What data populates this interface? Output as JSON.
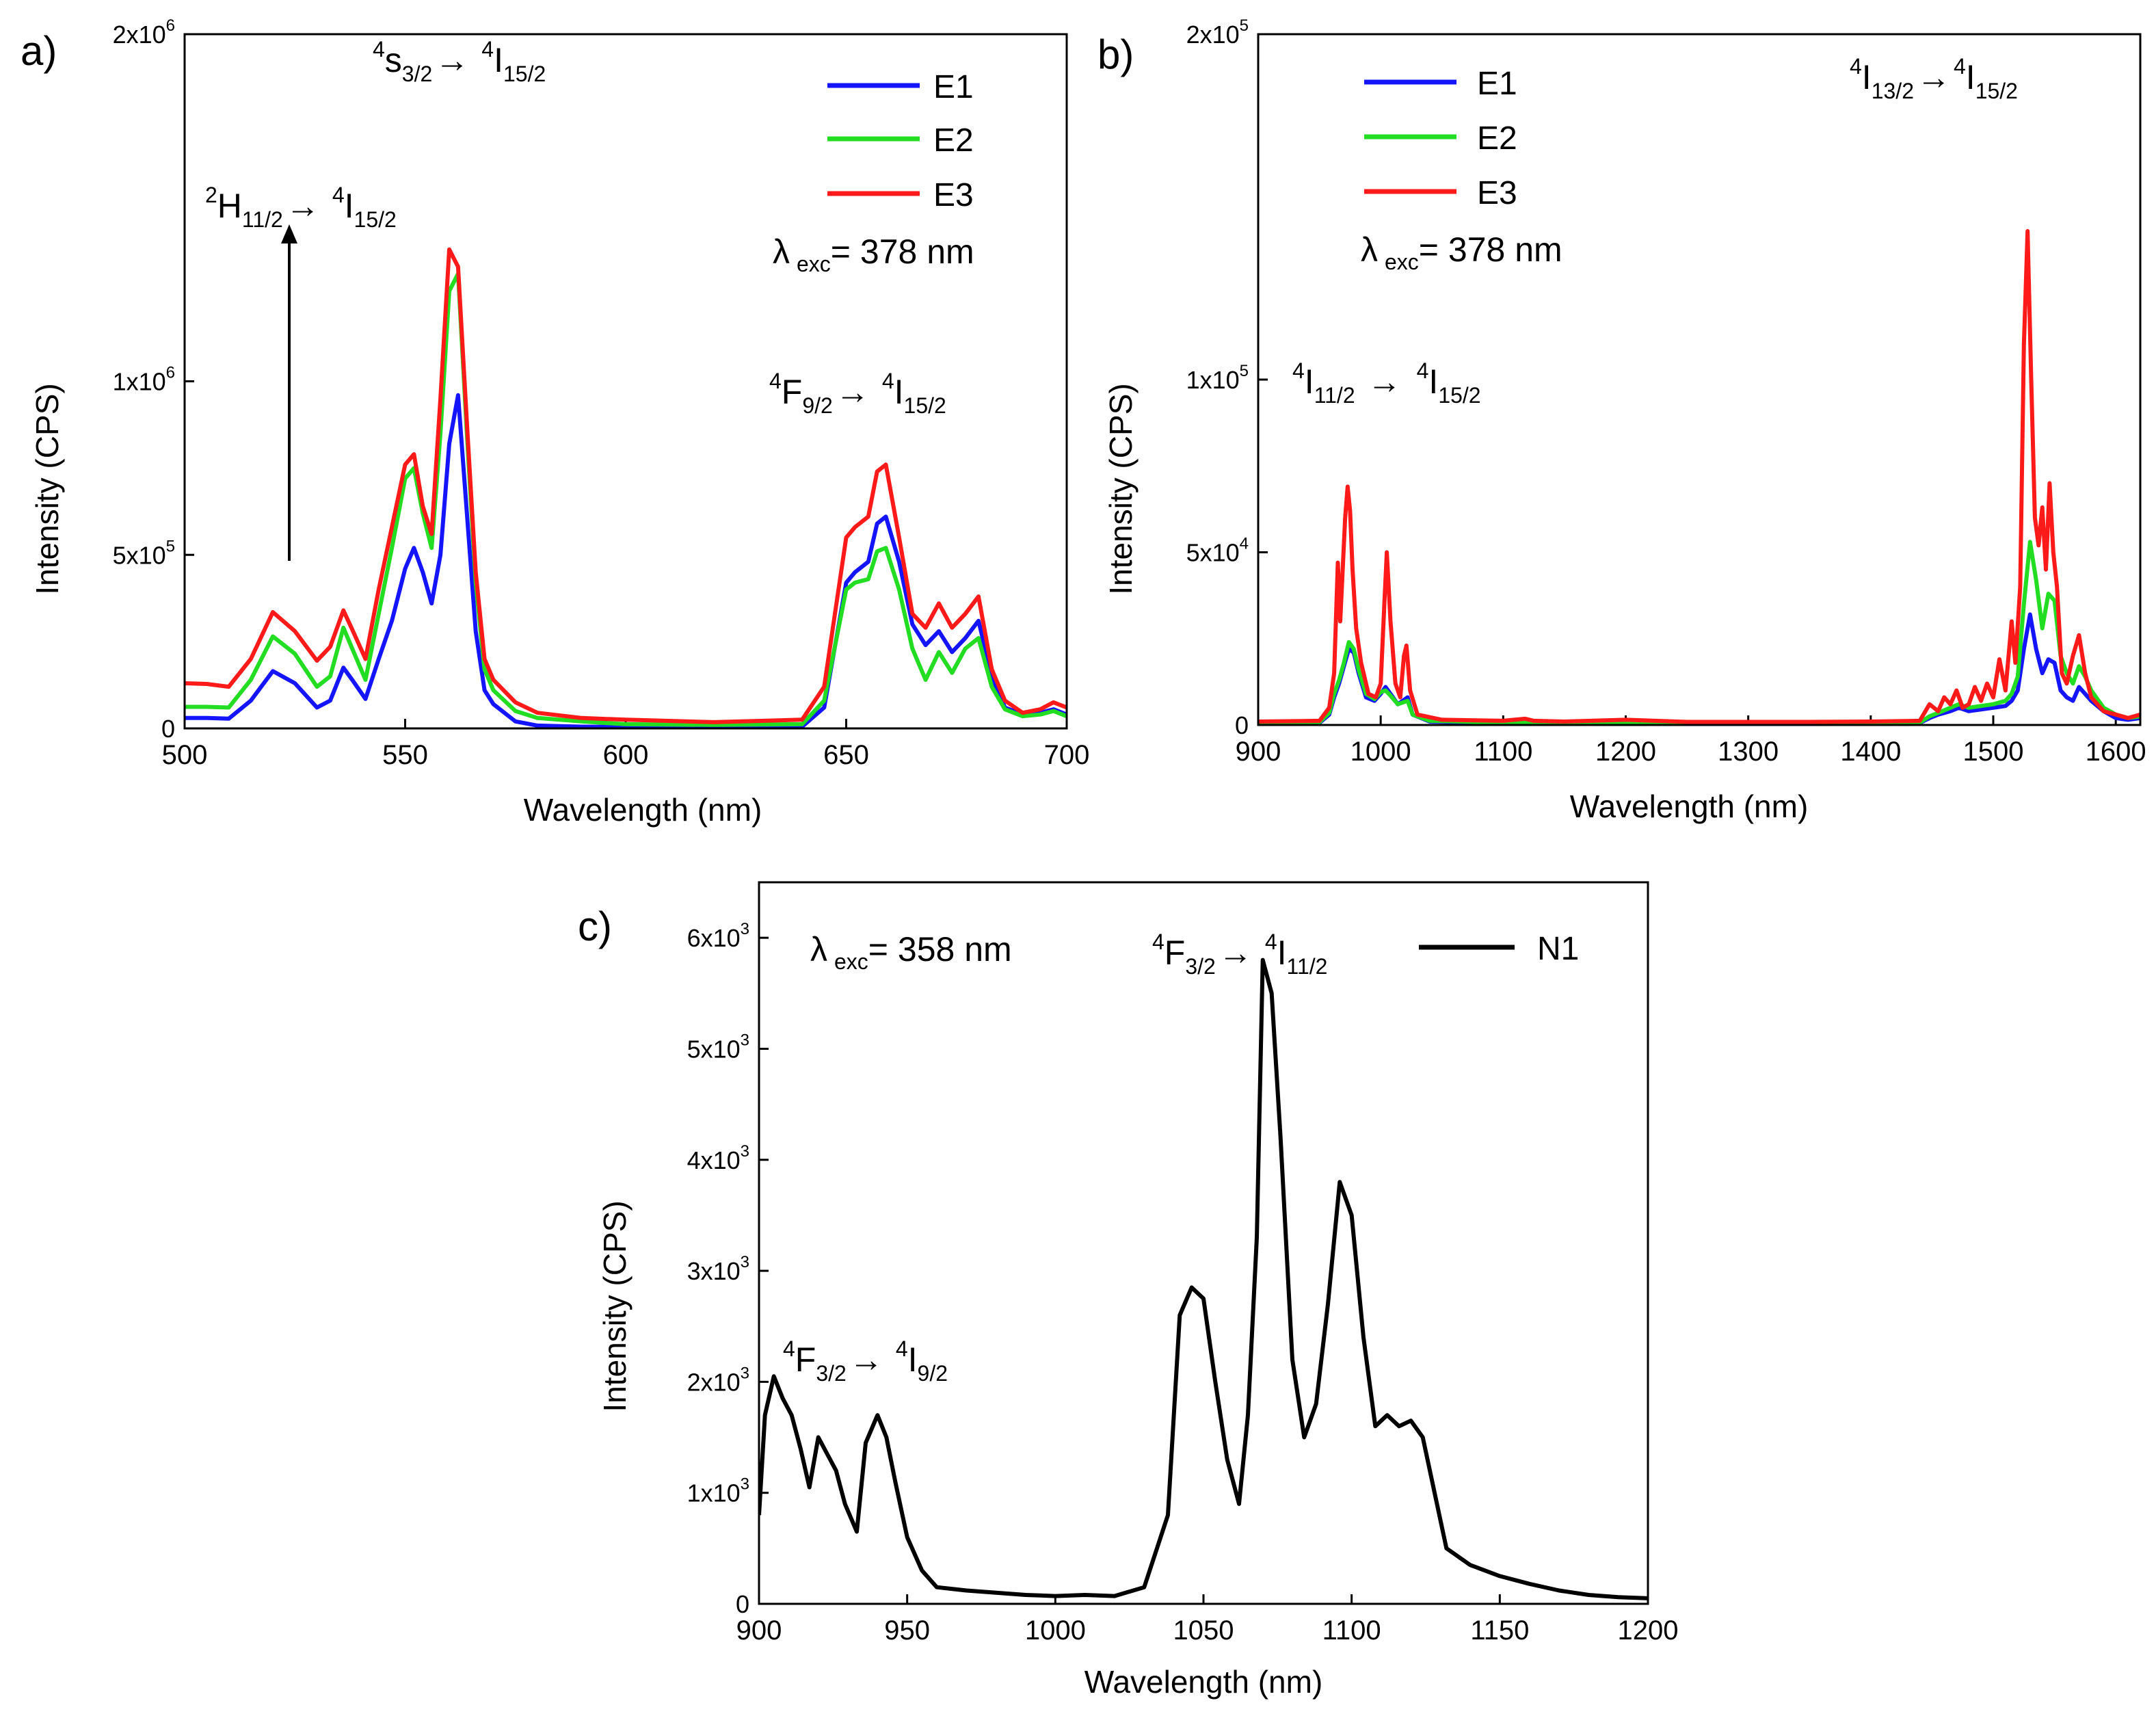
{
  "colors": {
    "E1": "#1414ff",
    "E2": "#22dd22",
    "E3": "#ff1a1a",
    "N1": "#000000"
  },
  "chart_data": [
    {
      "id": "a",
      "type": "line",
      "panel_label": "a)",
      "xlabel": "Wavelength (nm)",
      "ylabel": "Intensity (CPS)",
      "xlim": [
        500,
        700
      ],
      "ylim": [
        0,
        2000000
      ],
      "x_ticks": [
        500,
        550,
        600,
        650,
        700
      ],
      "x_tick_labels": [
        "500",
        "550",
        "600",
        "650",
        "700"
      ],
      "y_ticks": [
        0,
        500000,
        1000000,
        2000000
      ],
      "y_tick_labels": [
        {
          "base": "0",
          "exp": ""
        },
        {
          "base": "5x10",
          "exp": "5"
        },
        {
          "base": "1x10",
          "exp": "6"
        },
        {
          "base": "2x10",
          "exp": "6"
        }
      ],
      "legend": {
        "position": "top-right",
        "entries": [
          "E1",
          "E2",
          "E3"
        ]
      },
      "excitation": {
        "prefix": "λ",
        "sub": "exc",
        "text": "= 378 nm"
      },
      "annotations": [
        {
          "sup1": "2",
          "main1": "H",
          "sub1": "11/2",
          "arrow": "→",
          "sup2": "4",
          "main2": "I",
          "sub2": "15/2"
        },
        {
          "sup1": "4",
          "main1": "s",
          "sub1": "3/2",
          "arrow": "→",
          "sup2": "4",
          "main2": "I",
          "sub2": "15/2"
        },
        {
          "sup1": "4",
          "main1": "F",
          "sub1": "9/2",
          "arrow": "→",
          "sup2": "4",
          "main2": "I",
          "sub2": "15/2"
        }
      ],
      "series": [
        {
          "name": "E1",
          "x": [
            500,
            505,
            510,
            515,
            520,
            525,
            530,
            533,
            536,
            538,
            541,
            544,
            547,
            550,
            552,
            554,
            556,
            558,
            560,
            562,
            564,
            566,
            568,
            570,
            575,
            580,
            590,
            600,
            620,
            640,
            645,
            650,
            652,
            655,
            657,
            659,
            662,
            665,
            668,
            671,
            674,
            677,
            680,
            683,
            686,
            690,
            694,
            697,
            700
          ],
          "y": [
            30000,
            30000,
            28000,
            80000,
            165000,
            130000,
            60000,
            80000,
            175000,
            140000,
            85000,
            200000,
            310000,
            460000,
            520000,
            450000,
            360000,
            500000,
            820000,
            960000,
            620000,
            280000,
            110000,
            70000,
            20000,
            8000,
            5000,
            4000,
            4000,
            5000,
            60000,
            420000,
            450000,
            480000,
            590000,
            610000,
            480000,
            300000,
            240000,
            280000,
            220000,
            260000,
            310000,
            150000,
            60000,
            40000,
            45000,
            55000,
            40000
          ]
        },
        {
          "name": "E2",
          "x": [
            500,
            505,
            510,
            515,
            520,
            525,
            530,
            533,
            536,
            538,
            541,
            544,
            547,
            550,
            552,
            554,
            556,
            558,
            560,
            562,
            564,
            566,
            568,
            570,
            575,
            580,
            590,
            600,
            620,
            640,
            645,
            650,
            652,
            655,
            657,
            659,
            662,
            665,
            668,
            671,
            674,
            677,
            680,
            683,
            686,
            690,
            694,
            697,
            700
          ],
          "y": [
            62000,
            62000,
            60000,
            140000,
            265000,
            215000,
            120000,
            150000,
            290000,
            230000,
            140000,
            330000,
            520000,
            720000,
            750000,
            620000,
            520000,
            850000,
            1260000,
            1310000,
            850000,
            420000,
            170000,
            110000,
            50000,
            30000,
            20000,
            12000,
            10000,
            12000,
            80000,
            400000,
            420000,
            430000,
            510000,
            520000,
            400000,
            230000,
            140000,
            220000,
            160000,
            230000,
            260000,
            120000,
            55000,
            35000,
            40000,
            50000,
            35000
          ]
        },
        {
          "name": "E3",
          "x": [
            500,
            505,
            510,
            515,
            520,
            525,
            530,
            533,
            536,
            538,
            541,
            544,
            547,
            550,
            552,
            554,
            556,
            558,
            560,
            562,
            564,
            566,
            568,
            570,
            575,
            580,
            590,
            600,
            620,
            640,
            645,
            650,
            652,
            655,
            657,
            659,
            662,
            665,
            668,
            671,
            674,
            677,
            680,
            683,
            686,
            690,
            694,
            697,
            700
          ],
          "y": [
            130000,
            128000,
            120000,
            200000,
            335000,
            280000,
            195000,
            235000,
            340000,
            285000,
            200000,
            400000,
            580000,
            760000,
            790000,
            640000,
            560000,
            950000,
            1380000,
            1330000,
            880000,
            450000,
            200000,
            140000,
            75000,
            45000,
            30000,
            25000,
            18000,
            25000,
            120000,
            550000,
            580000,
            610000,
            740000,
            760000,
            550000,
            330000,
            290000,
            360000,
            290000,
            330000,
            380000,
            170000,
            80000,
            45000,
            55000,
            75000,
            60000
          ]
        }
      ]
    },
    {
      "id": "b",
      "type": "line",
      "panel_label": "b)",
      "xlabel": "Wavelength (nm)",
      "ylabel": "Intensity (CPS)",
      "xlim": [
        900,
        1620
      ],
      "ylim": [
        0,
        200000
      ],
      "x_ticks": [
        900,
        1000,
        1100,
        1200,
        1300,
        1400,
        1500,
        1600
      ],
      "x_tick_labels": [
        "900",
        "1000",
        "1100",
        "1200",
        "1300",
        "1400",
        "1500",
        "1600"
      ],
      "y_ticks": [
        0,
        50000,
        100000,
        200000
      ],
      "y_tick_labels": [
        {
          "base": "0",
          "exp": ""
        },
        {
          "base": "5x10",
          "exp": "4"
        },
        {
          "base": "1x10",
          "exp": "5"
        },
        {
          "base": "2x10",
          "exp": "5"
        }
      ],
      "legend": {
        "position": "top-left",
        "entries": [
          "E1",
          "E2",
          "E3"
        ]
      },
      "excitation": {
        "prefix": "λ",
        "sub": "exc",
        "text": "= 378 nm"
      },
      "annotations": [
        {
          "sup1": "4",
          "main1": "I",
          "sub1": "11/2",
          "arrow": "→",
          "sup2": "4",
          "main2": "I",
          "sub2": "15/2"
        },
        {
          "sup1": "4",
          "main1": "I",
          "sub1": "13/2",
          "arrow": "→",
          "sup2": "4",
          "main2": "I",
          "sub2": "15/2"
        }
      ],
      "series": [
        {
          "name": "E1",
          "x": [
            900,
            950,
            958,
            962,
            966,
            970,
            974,
            978,
            982,
            988,
            995,
            1000,
            1004,
            1008,
            1014,
            1018,
            1022,
            1026,
            1040,
            1100,
            1200,
            1300,
            1400,
            1440,
            1448,
            1455,
            1465,
            1472,
            1480,
            1490,
            1500,
            1510,
            1515,
            1520,
            1525,
            1530,
            1535,
            1540,
            1545,
            1550,
            1555,
            1560,
            1565,
            1570,
            1575,
            1580,
            1590,
            1600,
            1610,
            1620
          ],
          "y": [
            500,
            600,
            3000,
            8000,
            12000,
            17000,
            22000,
            21000,
            15000,
            8000,
            7000,
            9000,
            11000,
            9000,
            6000,
            7000,
            8000,
            3000,
            1000,
            600,
            500,
            400,
            500,
            600,
            2000,
            3000,
            4000,
            5000,
            4000,
            4500,
            5000,
            5500,
            7000,
            10000,
            22000,
            32000,
            22000,
            15000,
            19000,
            18000,
            10000,
            8000,
            7000,
            11000,
            9000,
            7000,
            4000,
            2000,
            1500,
            2000
          ]
        },
        {
          "name": "E2",
          "x": [
            900,
            950,
            958,
            962,
            966,
            970,
            974,
            978,
            982,
            988,
            995,
            1000,
            1004,
            1008,
            1014,
            1018,
            1022,
            1026,
            1040,
            1100,
            1200,
            1300,
            1400,
            1440,
            1448,
            1455,
            1465,
            1472,
            1480,
            1490,
            1500,
            1510,
            1515,
            1520,
            1525,
            1530,
            1535,
            1540,
            1545,
            1550,
            1555,
            1560,
            1565,
            1570,
            1575,
            1580,
            1590,
            1600,
            1610,
            1620
          ],
          "y": [
            700,
            800,
            3500,
            9000,
            13000,
            18000,
            24000,
            22000,
            16000,
            9000,
            7500,
            9500,
            10000,
            8500,
            6000,
            6500,
            7000,
            3000,
            1200,
            700,
            600,
            500,
            600,
            700,
            2500,
            3500,
            5000,
            6000,
            5000,
            5500,
            6000,
            7000,
            9000,
            14000,
            35000,
            53000,
            42000,
            28000,
            38000,
            36000,
            20000,
            15000,
            12000,
            17000,
            14000,
            10000,
            5000,
            3000,
            2000,
            2500
          ]
        },
        {
          "name": "E3",
          "x": [
            900,
            950,
            958,
            962,
            965,
            967,
            969,
            971,
            973,
            975,
            977,
            980,
            984,
            990,
            996,
            1000,
            1003,
            1005,
            1008,
            1012,
            1016,
            1019,
            1021,
            1024,
            1030,
            1050,
            1100,
            1118,
            1125,
            1150,
            1200,
            1250,
            1300,
            1350,
            1400,
            1440,
            1448,
            1455,
            1460,
            1465,
            1470,
            1475,
            1480,
            1485,
            1490,
            1495,
            1500,
            1505,
            1510,
            1515,
            1518,
            1522,
            1525,
            1528,
            1531,
            1534,
            1537,
            1540,
            1543,
            1546,
            1549,
            1552,
            1556,
            1560,
            1565,
            1570,
            1575,
            1580,
            1590,
            1600,
            1610,
            1620
          ],
          "y": [
            1000,
            1200,
            5000,
            15000,
            47000,
            30000,
            45000,
            60000,
            69000,
            62000,
            45000,
            28000,
            18000,
            9000,
            8000,
            12000,
            35000,
            50000,
            30000,
            12000,
            8000,
            20000,
            23000,
            10000,
            3000,
            1500,
            1200,
            1800,
            1200,
            1000,
            1500,
            900,
            900,
            900,
            1000,
            1200,
            6000,
            4000,
            8000,
            6000,
            10000,
            5000,
            6000,
            11000,
            7000,
            12000,
            8000,
            19000,
            10000,
            30000,
            18000,
            40000,
            110000,
            143000,
            100000,
            60000,
            52000,
            63000,
            45000,
            70000,
            50000,
            40000,
            15000,
            12000,
            20000,
            26000,
            15000,
            8000,
            4000,
            3000,
            2000,
            3000
          ]
        }
      ]
    },
    {
      "id": "c",
      "type": "line",
      "panel_label": "c)",
      "xlabel": "Wavelength (nm)",
      "ylabel": "Intensity (CPS)",
      "xlim": [
        900,
        1200
      ],
      "ylim": [
        0,
        6500
      ],
      "x_ticks": [
        900,
        950,
        1000,
        1050,
        1100,
        1150,
        1200
      ],
      "x_tick_labels": [
        "900",
        "950",
        "1000",
        "1050",
        "1100",
        "1150",
        "1200"
      ],
      "y_ticks": [
        0,
        1000,
        2000,
        3000,
        4000,
        5000,
        6000
      ],
      "y_tick_labels": [
        {
          "base": "0",
          "exp": ""
        },
        {
          "base": "1x10",
          "exp": "3"
        },
        {
          "base": "2x10",
          "exp": "3"
        },
        {
          "base": "3x10",
          "exp": "3"
        },
        {
          "base": "4x10",
          "exp": "3"
        },
        {
          "base": "5x10",
          "exp": "3"
        },
        {
          "base": "6x10",
          "exp": "3"
        }
      ],
      "legend": {
        "position": "top-right",
        "entries": [
          "N1"
        ]
      },
      "excitation": {
        "prefix": "λ",
        "sub": "exc",
        "text": "= 358 nm"
      },
      "annotations": [
        {
          "sup1": "4",
          "main1": "F",
          "sub1": "3/2",
          "arrow": "→",
          "sup2": "4",
          "main2": "I",
          "sub2": "11/2"
        },
        {
          "sup1": "4",
          "main1": "F",
          "sub1": "3/2",
          "arrow": "→",
          "sup2": "4",
          "main2": "I",
          "sub2": "9/2"
        }
      ],
      "series": [
        {
          "name": "N1",
          "x": [
            900,
            902,
            905,
            908,
            911,
            914,
            917,
            920,
            923,
            926,
            929,
            933,
            936,
            940,
            943,
            946,
            950,
            955,
            960,
            970,
            980,
            990,
            1000,
            1010,
            1020,
            1030,
            1038,
            1042,
            1046,
            1050,
            1054,
            1058,
            1062,
            1065,
            1068,
            1070,
            1073,
            1076,
            1080,
            1084,
            1088,
            1092,
            1096,
            1100,
            1104,
            1108,
            1112,
            1116,
            1120,
            1124,
            1128,
            1132,
            1140,
            1150,
            1160,
            1170,
            1180,
            1190,
            1200
          ],
          "y": [
            800,
            1700,
            2050,
            1850,
            1700,
            1400,
            1050,
            1500,
            1350,
            1200,
            900,
            650,
            1450,
            1700,
            1500,
            1100,
            600,
            300,
            150,
            120,
            100,
            80,
            70,
            80,
            70,
            150,
            800,
            2600,
            2850,
            2750,
            2000,
            1300,
            900,
            1700,
            3300,
            5800,
            5500,
            4200,
            2200,
            1500,
            1800,
            2700,
            3800,
            3500,
            2400,
            1600,
            1700,
            1600,
            1650,
            1500,
            1000,
            500,
            350,
            250,
            180,
            120,
            80,
            60,
            50
          ]
        }
      ]
    }
  ]
}
